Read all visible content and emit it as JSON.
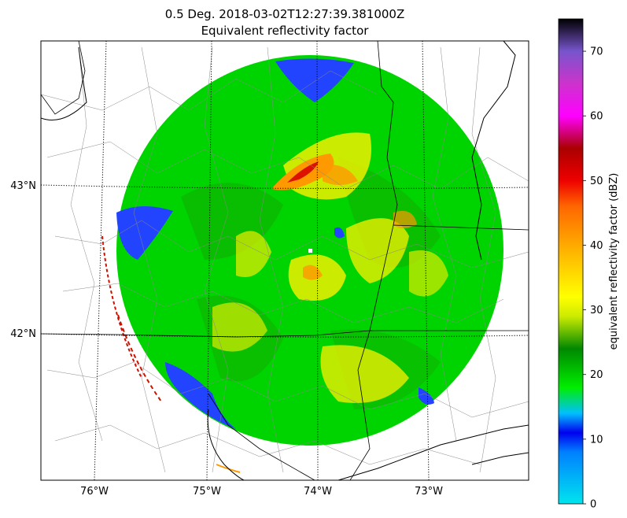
{
  "figure": {
    "title_line1": "0.5 Deg. 2018-03-02T12:27:39.381000Z",
    "title_line2": "Equivalent reflectivity factor"
  },
  "map": {
    "longitude_ticks": [
      {
        "value": -76,
        "label": "76°W"
      },
      {
        "value": -75,
        "label": "75°W"
      },
      {
        "value": -74,
        "label": "74°W"
      },
      {
        "value": -73,
        "label": "73°W"
      }
    ],
    "latitude_ticks": [
      {
        "value": 43,
        "label": "43°N"
      },
      {
        "value": 42,
        "label": "42°N"
      }
    ],
    "gridlines": true,
    "radar_site": {
      "lon": -73.97,
      "lat": 42.59
    }
  },
  "colorbar": {
    "label": "equivalent reflectivity factor (dBZ)",
    "range": [
      0,
      75
    ],
    "ticks": [
      "0",
      "10",
      "20",
      "30",
      "40",
      "50",
      "60",
      "70"
    ],
    "tick_values": [
      0,
      10,
      20,
      30,
      40,
      50,
      60,
      70
    ],
    "colors": {
      "c0": "#00e5ee",
      "c8": "#0080ff",
      "c11": "#0000ee",
      "c14": "#00c0ff",
      "c18": "#00ee00",
      "c24": "#008800",
      "c29": "#cceb00",
      "c32": "#ffff00",
      "c40": "#ffaa00",
      "c46": "#ff6600",
      "c50": "#ee0000",
      "c55": "#aa0000",
      "c60": "#ff00ff",
      "c65": "#cc33cc",
      "c70": "#7755cc",
      "c75": "#000000"
    }
  },
  "colors": {
    "green": "#00cc00",
    "dark_green": "#009900",
    "yellow": "#eeee00",
    "orange": "#ff9900",
    "red": "#dd1100",
    "blue": "#2244ff"
  }
}
